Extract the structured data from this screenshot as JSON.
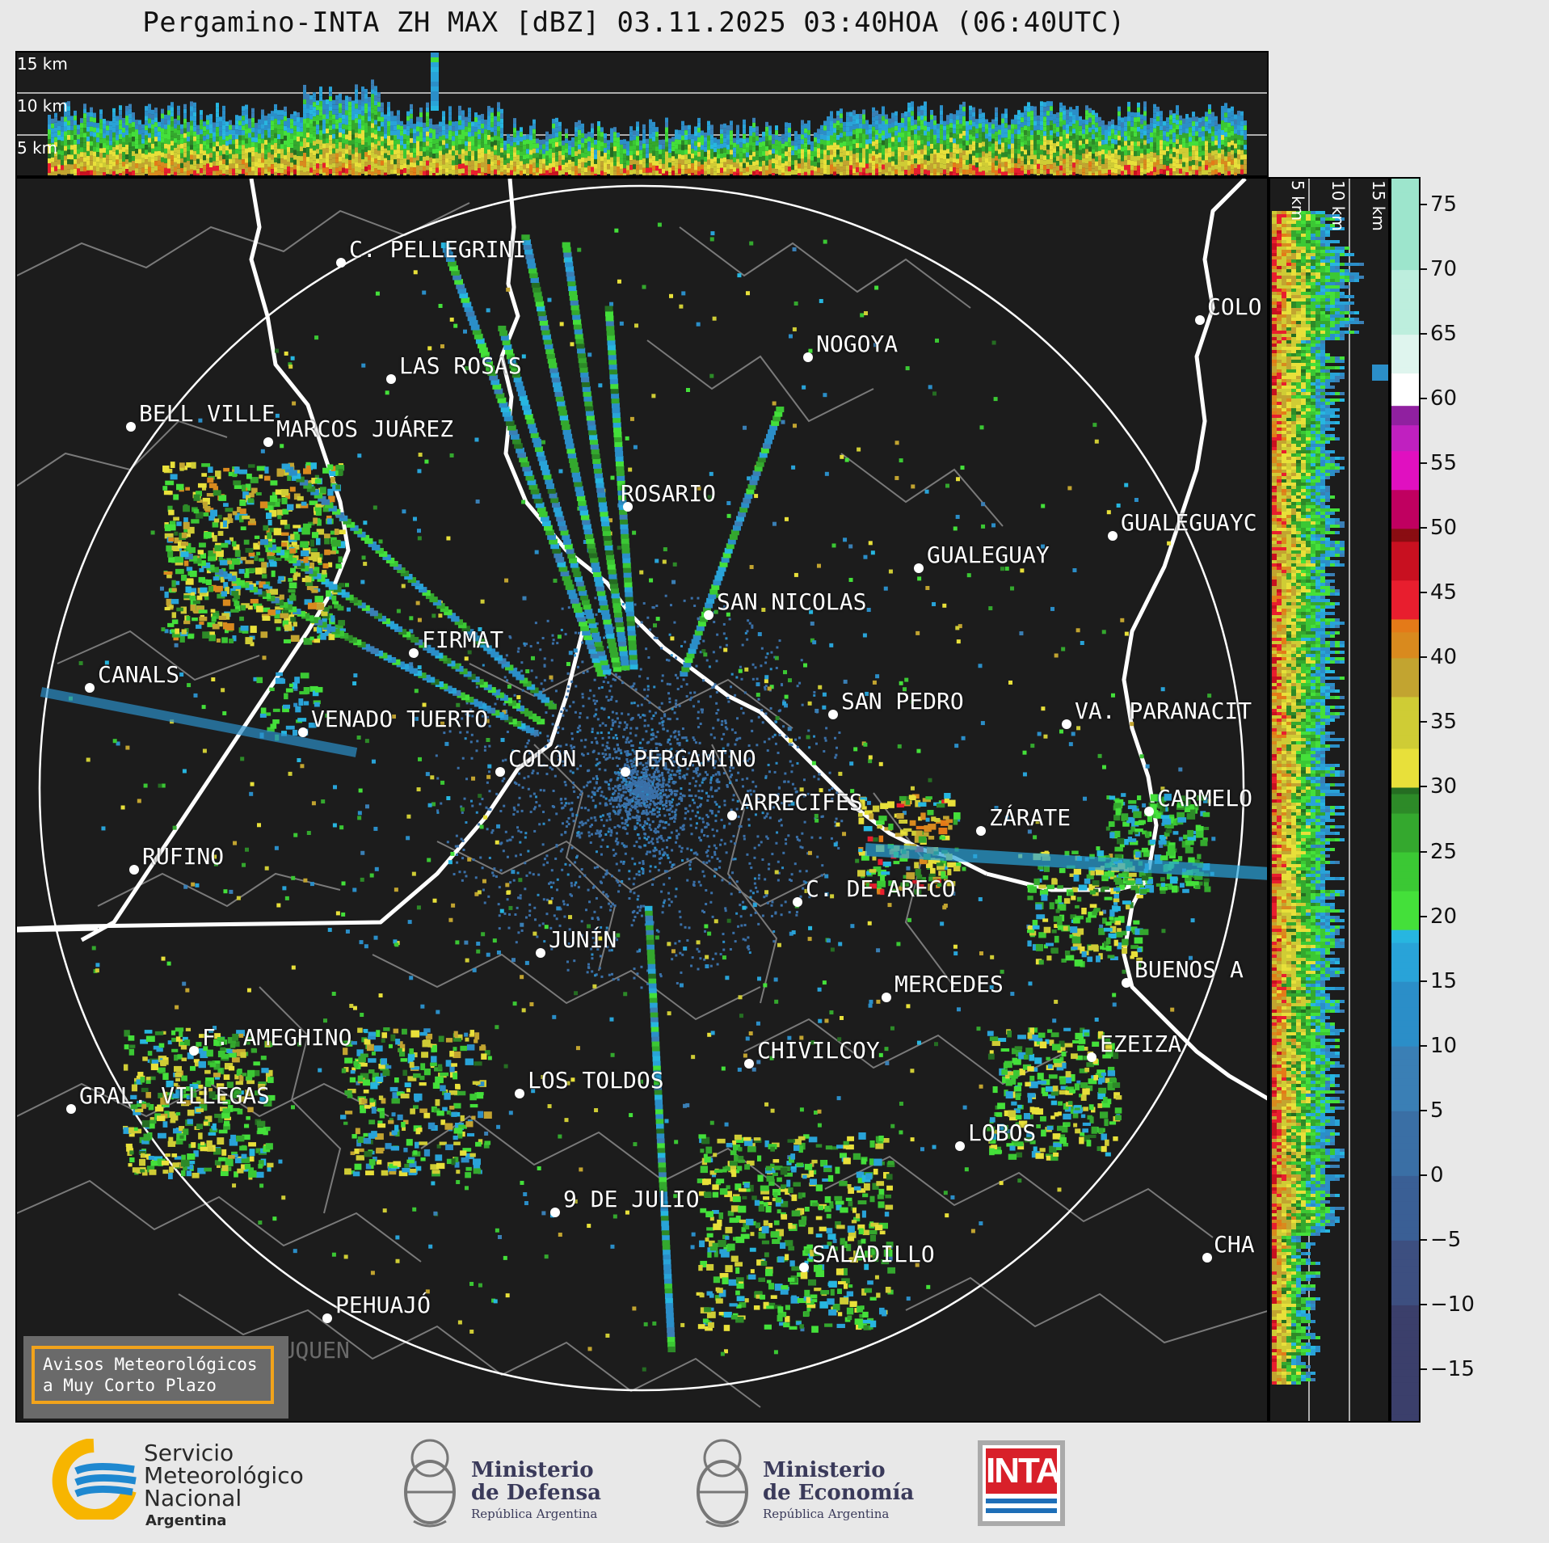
{
  "title": "Pergamino-INTA ZH MAX [dBZ] 03.11.2025 03:40HOA (06:40UTC)",
  "altitude_labels_top": [
    "15 km",
    "10 km",
    "5 km"
  ],
  "altitude_labels_right": [
    "5 km",
    "10 km",
    "15 km"
  ],
  "colorbar": {
    "ticks": [
      "75",
      "70",
      "65",
      "60",
      "55",
      "50",
      "45",
      "40",
      "35",
      "30",
      "25",
      "20",
      "15",
      "10",
      "5",
      "0",
      "−5",
      "−10",
      "−15"
    ],
    "min": -19,
    "max": 77
  },
  "cities": [
    {
      "name": "C. PELLEGRINI"
    },
    {
      "name": "LAS ROSAS"
    },
    {
      "name": "NOGOYA"
    },
    {
      "name": "COLO"
    },
    {
      "name": "BELL VILLE"
    },
    {
      "name": "MARCOS JUÁREZ"
    },
    {
      "name": "ROSARIO"
    },
    {
      "name": "GUALEGUAYC"
    },
    {
      "name": "GUALEGUAY"
    },
    {
      "name": "SAN NICOLAS"
    },
    {
      "name": "FIRMAT"
    },
    {
      "name": "CANALS"
    },
    {
      "name": "SAN PEDRO"
    },
    {
      "name": "VENADO TUERTO"
    },
    {
      "name": "VA. PARANACIT"
    },
    {
      "name": "COLÓN"
    },
    {
      "name": "PERGAMINO"
    },
    {
      "name": "CARMELO"
    },
    {
      "name": "ARRECIFES"
    },
    {
      "name": "ZÁRATE"
    },
    {
      "name": "RUFINO"
    },
    {
      "name": "C. DE ARECO"
    },
    {
      "name": "JUNÍN"
    },
    {
      "name": "BUENOS A"
    },
    {
      "name": "MERCEDES"
    },
    {
      "name": "F. AMEGHINO"
    },
    {
      "name": "EZEIZA"
    },
    {
      "name": "CHIVILCOY"
    },
    {
      "name": "GRAL. VILLEGAS"
    },
    {
      "name": "LOS TOLDOS"
    },
    {
      "name": "LOBOS"
    },
    {
      "name": "9 DE JULIO"
    },
    {
      "name": "CHA"
    },
    {
      "name": "SALADILLO"
    },
    {
      "name": "PEHUAJÓ"
    },
    {
      "name": "TRENQUE LAUQUEN"
    }
  ],
  "notice": {
    "line1": "Avisos Meteorológicos",
    "line2": "a Muy Corto Plazo"
  },
  "footer": {
    "smn": [
      "Servicio",
      "Meteorológico",
      "Nacional",
      "Argentina"
    ],
    "defensa": [
      "Ministerio",
      "de Defensa",
      "República Argentina"
    ],
    "economia": [
      "Ministerio",
      "de Economía",
      "República Argentina"
    ],
    "inta": "INTA"
  },
  "colors": {
    "background": "#1c1c1c",
    "accent_orange": "#f2a31b",
    "smn_blue": "#1e88d0",
    "smn_yellow": "#f7b500",
    "inta_red": "#d8202a"
  }
}
